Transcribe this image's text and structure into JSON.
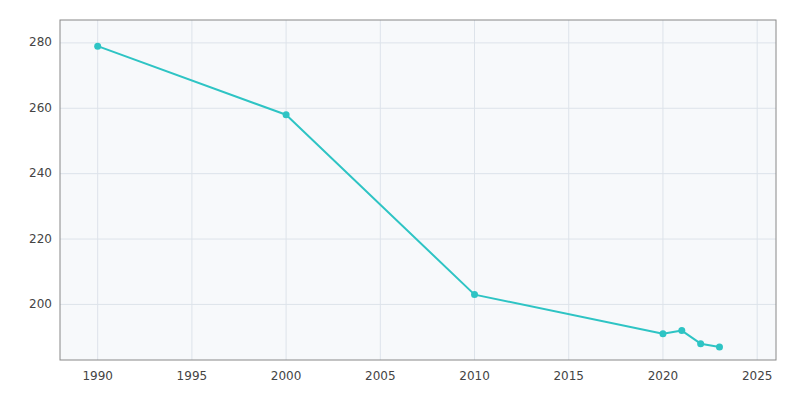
{
  "chart_data": {
    "type": "line",
    "x": [
      1990,
      2000,
      2010,
      2020,
      2021,
      2022,
      2023
    ],
    "values": [
      279,
      258,
      203,
      191,
      192,
      188,
      187
    ],
    "color": "#2ec4c4",
    "marker": "circle",
    "xlim": [
      1988,
      2026
    ],
    "ylim": [
      183,
      287
    ],
    "xticks": [
      1990,
      1995,
      2000,
      2005,
      2010,
      2015,
      2020,
      2025
    ],
    "yticks": [
      200,
      220,
      240,
      260,
      280
    ],
    "grid": true
  }
}
